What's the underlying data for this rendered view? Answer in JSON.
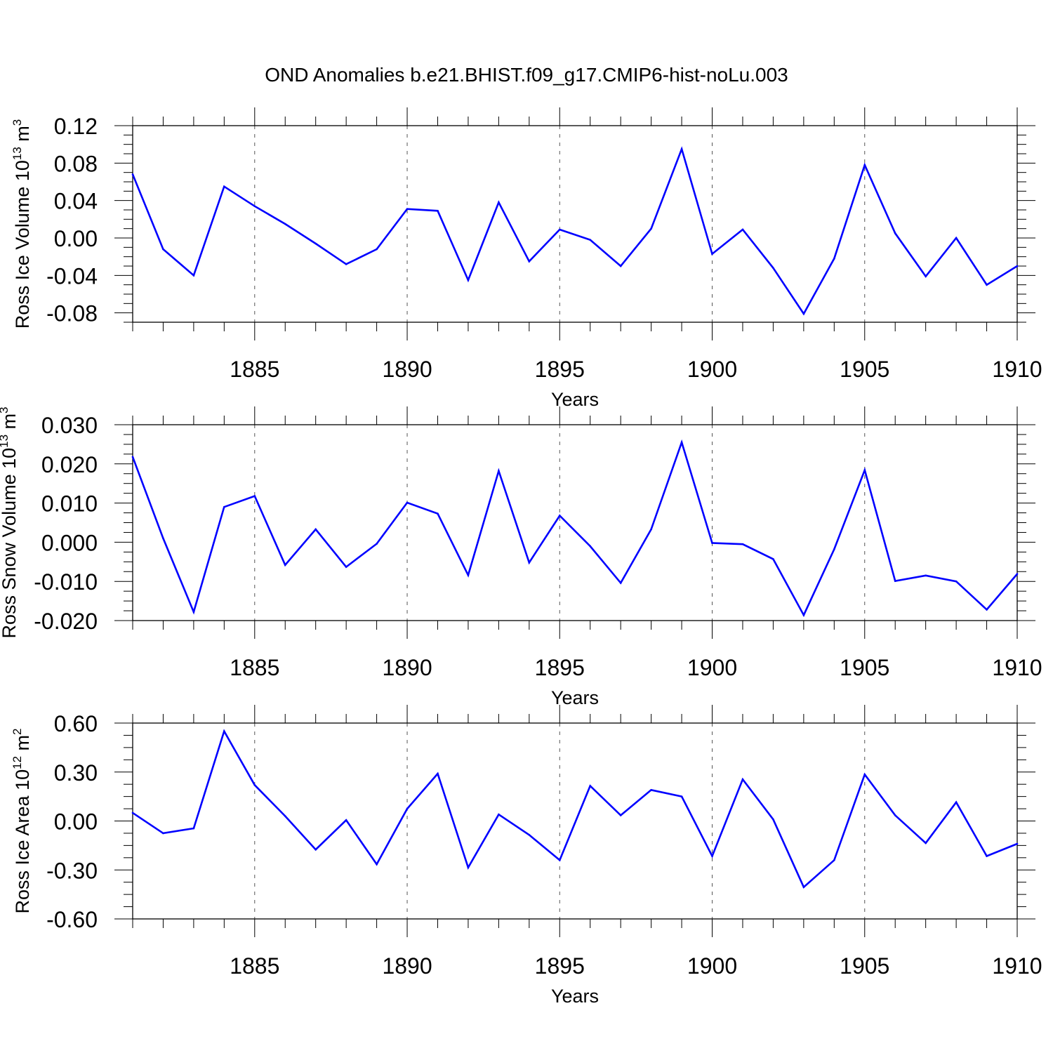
{
  "title": "OND Anomalies b.e21.BHIST.f09_g17.CMIP6-hist-noLu.003",
  "line_color": "#0000ff",
  "chart_data": [
    {
      "type": "line",
      "xlabel": "Years",
      "ylabel": {
        "main": "Ross Ice Volume 10",
        "exp": "13",
        "unit": " m",
        "unit_exp": "3"
      },
      "xlim": [
        1881,
        1910
      ],
      "ylim": [
        -0.09,
        0.12
      ],
      "yticks": [
        "0.12",
        "0.08",
        "0.04",
        "0.00",
        "-0.04",
        "-0.08"
      ],
      "ytick_values": [
        0.12,
        0.08,
        0.04,
        0.0,
        -0.04,
        -0.08
      ],
      "xticks": [
        "1885",
        "1890",
        "1895",
        "1900",
        "1905",
        "1910"
      ],
      "xtick_values": [
        1885,
        1890,
        1895,
        1900,
        1905,
        1910
      ],
      "grid": "dashed vertical at major x ticks",
      "x": [
        1881,
        1882,
        1883,
        1884,
        1885,
        1886,
        1887,
        1888,
        1889,
        1890,
        1891,
        1892,
        1893,
        1894,
        1895,
        1896,
        1897,
        1898,
        1899,
        1900,
        1901,
        1902,
        1903,
        1904,
        1905,
        1906,
        1907,
        1908,
        1909,
        1910
      ],
      "values": [
        0.068,
        -0.012,
        -0.04,
        0.055,
        0.034,
        0.015,
        -0.006,
        -0.028,
        -0.012,
        0.031,
        0.029,
        -0.045,
        0.038,
        -0.025,
        0.009,
        -0.002,
        -0.03,
        0.01,
        0.095,
        -0.017,
        0.009,
        -0.032,
        -0.081,
        -0.022,
        0.078,
        0.005,
        -0.041,
        0.0,
        -0.05,
        -0.03
      ]
    },
    {
      "type": "line",
      "xlabel": "Years",
      "ylabel": {
        "main": "Ross Snow Volume 10",
        "exp": "13",
        "unit": " m",
        "unit_exp": "3"
      },
      "xlim": [
        1881,
        1910
      ],
      "ylim": [
        -0.02,
        0.03
      ],
      "yticks": [
        "0.030",
        "0.020",
        "0.010",
        "0.000",
        "-0.010",
        "-0.020"
      ],
      "ytick_values": [
        0.03,
        0.02,
        0.01,
        0.0,
        -0.01,
        -0.02
      ],
      "xticks": [
        "1885",
        "1890",
        "1895",
        "1900",
        "1905",
        "1910"
      ],
      "xtick_values": [
        1885,
        1890,
        1895,
        1900,
        1905,
        1910
      ],
      "grid": "dashed vertical at major x ticks",
      "x": [
        1881,
        1882,
        1883,
        1884,
        1885,
        1886,
        1887,
        1888,
        1889,
        1890,
        1891,
        1892,
        1893,
        1894,
        1895,
        1896,
        1897,
        1898,
        1899,
        1900,
        1901,
        1902,
        1903,
        1904,
        1905,
        1906,
        1907,
        1908,
        1909,
        1910
      ],
      "values": [
        0.0218,
        0.001,
        -0.0178,
        0.009,
        0.0118,
        -0.0058,
        0.0033,
        -0.0063,
        -0.0004,
        0.0101,
        0.0073,
        -0.0084,
        0.0182,
        -0.0052,
        0.0068,
        -0.001,
        -0.0104,
        0.0033,
        0.0255,
        -0.0002,
        -0.0005,
        -0.0043,
        -0.0186,
        -0.0018,
        0.0184,
        -0.0099,
        -0.0085,
        -0.01,
        -0.0172,
        -0.0081
      ]
    },
    {
      "type": "line",
      "xlabel": "Years",
      "ylabel": {
        "main": "Ross Ice Area 10",
        "exp": "12",
        "unit": " m",
        "unit_exp": "2"
      },
      "xlim": [
        1881,
        1910
      ],
      "ylim": [
        -0.6,
        0.6
      ],
      "yticks": [
        "0.60",
        "0.30",
        "0.00",
        "-0.30",
        "-0.60"
      ],
      "ytick_values": [
        0.6,
        0.3,
        0.0,
        -0.3,
        -0.6
      ],
      "xticks": [
        "1885",
        "1890",
        "1895",
        "1900",
        "1905",
        "1910"
      ],
      "xtick_values": [
        1885,
        1890,
        1895,
        1900,
        1905,
        1910
      ],
      "grid": "dashed vertical at major x ticks",
      "x": [
        1881,
        1882,
        1883,
        1884,
        1885,
        1886,
        1887,
        1888,
        1889,
        1890,
        1891,
        1892,
        1893,
        1894,
        1895,
        1896,
        1897,
        1898,
        1899,
        1900,
        1901,
        1902,
        1903,
        1904,
        1905,
        1906,
        1907,
        1908,
        1909,
        1910
      ],
      "values": [
        0.05,
        -0.075,
        -0.045,
        0.55,
        0.22,
        0.03,
        -0.175,
        0.005,
        -0.265,
        0.075,
        0.29,
        -0.285,
        0.04,
        -0.085,
        -0.24,
        0.215,
        0.035,
        0.19,
        0.15,
        -0.215,
        0.255,
        0.01,
        -0.405,
        -0.24,
        0.285,
        0.035,
        -0.135,
        0.115,
        -0.215,
        -0.14
      ]
    }
  ]
}
